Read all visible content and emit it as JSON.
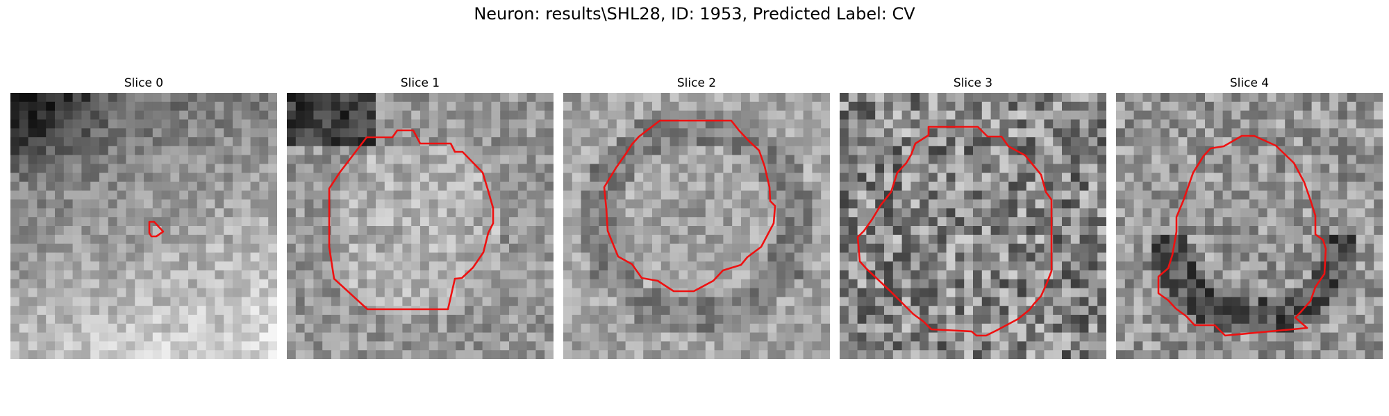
{
  "figure": {
    "title": "Neuron: results\\SHL28, ID: 1953, Predicted Label: CV"
  },
  "panels": [
    {
      "title": "Slice 0"
    },
    {
      "title": "Slice 1"
    },
    {
      "title": "Slice 2"
    },
    {
      "title": "Slice 3"
    },
    {
      "title": "Slice 4"
    }
  ],
  "colors": {
    "contour": "#ee1111",
    "background": "#ffffff"
  },
  "image": {
    "colormap": "gray",
    "grid": "30x30"
  }
}
